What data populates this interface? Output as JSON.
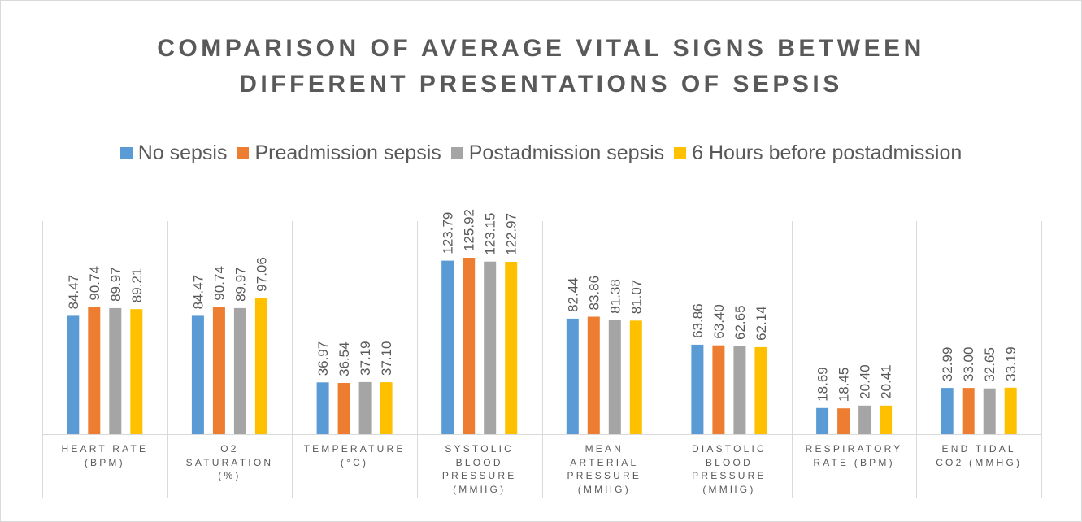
{
  "chart_data": {
    "type": "bar",
    "title": "COMPARISON OF AVERAGE VITAL SIGNS BETWEEN DIFFERENT PRESENTATIONS OF SEPSIS",
    "title_lines": [
      "COMPARISON OF AVERAGE VITAL SIGNS BETWEEN",
      "DIFFERENT PRESENTATIONS OF SEPSIS"
    ],
    "categories": [
      "HEART RATE (BPM)",
      "O2 SATURATION (%)",
      "TEMPERATURE (°C)",
      "SYSTOLIC BLOOD PRESSURE (MMHG)",
      "MEAN ARTERIAL PRESSURE (MMHG)",
      "DIASTOLIC BLOOD PRESSURE (MMHG)",
      "RESPIRATORY RATE (BPM)",
      "END TIDAL CO2 (MMHG)"
    ],
    "category_lines": [
      [
        "HEART RATE",
        "(BPM)"
      ],
      [
        "O2",
        "SATURATION",
        "(%)"
      ],
      [
        "TEMPERATURE",
        "(°C)"
      ],
      [
        "SYSTOLIC",
        "BLOOD",
        "PRESSURE",
        "(MMHG)"
      ],
      [
        "MEAN",
        "ARTERIAL",
        "PRESSURE",
        "(MMHG)"
      ],
      [
        "DIASTOLIC",
        "BLOOD",
        "PRESSURE",
        "(MMHG)"
      ],
      [
        "RESPIRATORY",
        "RATE (BPM)"
      ],
      [
        "END TIDAL",
        "CO2 (MMHG)"
      ]
    ],
    "series": [
      {
        "name": "No sepsis",
        "color": "#5B9BD5",
        "values": [
          84.47,
          84.47,
          36.97,
          123.79,
          82.44,
          63.86,
          18.69,
          32.99
        ],
        "labels": [
          "84.47",
          "84.47",
          "36.97",
          "123.79",
          "82.44",
          "63.86",
          "18.69",
          "32.99"
        ]
      },
      {
        "name": "Preadmission sepsis",
        "color": "#ED7D31",
        "values": [
          90.74,
          90.74,
          36.54,
          125.92,
          83.86,
          63.4,
          18.45,
          33.0
        ],
        "labels": [
          "90.74",
          "90.74",
          "36.54",
          "125.92",
          "83.86",
          "63.40",
          "18.45",
          "33.00"
        ]
      },
      {
        "name": "Postadmission sepsis",
        "color": "#A5A5A5",
        "values": [
          89.97,
          89.97,
          37.19,
          123.15,
          81.38,
          62.65,
          20.4,
          32.65
        ],
        "labels": [
          "89.97",
          "89.97",
          "37.19",
          "123.15",
          "81.38",
          "62.65",
          "20.40",
          "32.65"
        ]
      },
      {
        "name": "6 Hours before postadmission",
        "color": "#FFC000",
        "values": [
          89.21,
          97.06,
          37.1,
          122.97,
          81.07,
          62.14,
          20.41,
          33.19
        ],
        "labels": [
          "89.21",
          "97.06",
          "37.10",
          "122.97",
          "81.07",
          "62.14",
          "20.41",
          "33.19"
        ]
      }
    ],
    "ylim": [
      0,
      152
    ],
    "grid": false,
    "legend": "top",
    "data_labels": "rotated-vertical-above-bars"
  }
}
